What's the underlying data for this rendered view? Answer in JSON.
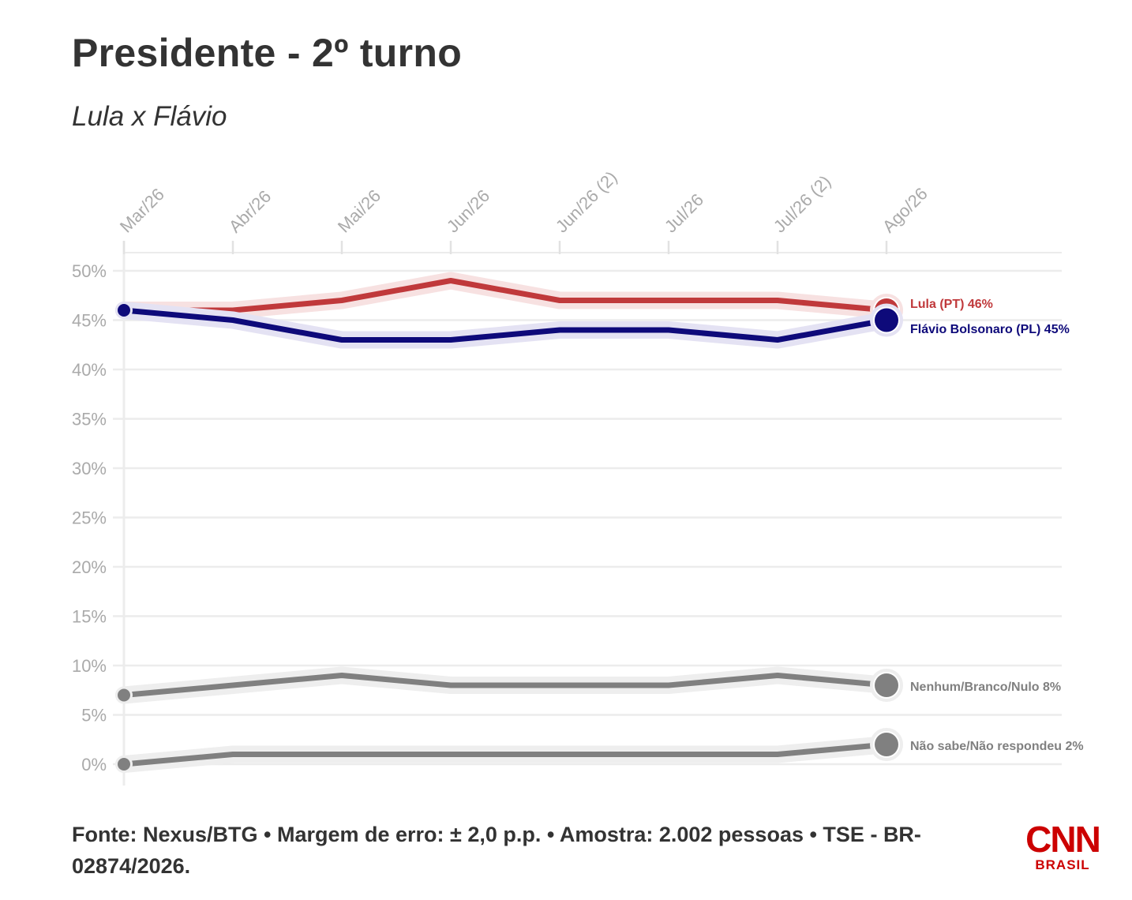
{
  "header": {
    "title": "Presidente - 2º turno",
    "subtitle": "Lula x Flávio"
  },
  "footer": {
    "source": "Fonte: Nexus/BTG • Margem de erro: ± 2,0 p.p. • Amostra: 2.002 pessoas • TSE - BR-02874/2026."
  },
  "logo": {
    "cnn": "CNN",
    "brasil": "BRASIL"
  },
  "chart_data": {
    "type": "line",
    "x": [
      "Mar/26",
      "Abr/26",
      "Mai/26",
      "Jun/26",
      "Jun/26 (2)",
      "Jul/26",
      "Jul/26 (2)",
      "Ago/26"
    ],
    "ylim": [
      0,
      50
    ],
    "y_ticks": [
      "0%",
      "5%",
      "10%",
      "15%",
      "20%",
      "25%",
      "30%",
      "35%",
      "40%",
      "45%",
      "50%"
    ],
    "grid": true,
    "series": [
      {
        "name": "Lula (PT)",
        "end_label": "Lula (PT) 46%",
        "color": "#c0393b",
        "halo": "#f7e1e1",
        "values": [
          46,
          46,
          47,
          49,
          47,
          47,
          47,
          46
        ]
      },
      {
        "name": "Flávio Bolsonaro (PL)",
        "end_label": "Flávio Bolsonaro (PL) 45%",
        "color": "#0e0a7a",
        "halo": "#e4e2f3",
        "values": [
          46,
          45,
          43,
          43,
          44,
          44,
          43,
          45
        ]
      },
      {
        "name": "Nenhum/Branco/Nulo",
        "end_label": "Nenhum/Branco/Nulo 8%",
        "color": "#808080",
        "halo": "#eeeeee",
        "values": [
          7,
          8,
          9,
          8,
          8,
          8,
          9,
          8
        ]
      },
      {
        "name": "Não sabe/Não respondeu",
        "end_label": "Não sabe/Não respondeu 2%",
        "color": "#808080",
        "halo": "#eeeeee",
        "values": [
          0,
          1,
          1,
          1,
          1,
          1,
          1,
          2
        ]
      }
    ]
  }
}
